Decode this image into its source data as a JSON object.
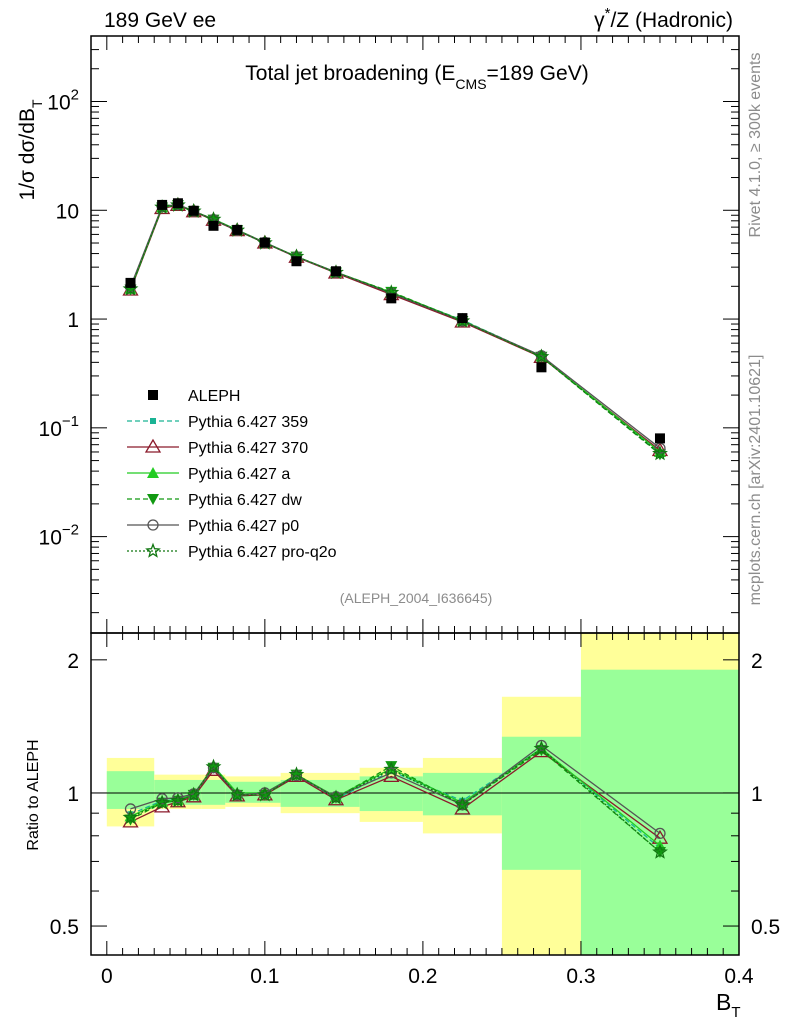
{
  "header": {
    "left": "189 GeV ee",
    "right_prefix": "γ",
    "right_sup": "*",
    "right_rest": "/Z (Hadronic)"
  },
  "side_labels": {
    "top": "Rivet 4.1.0, ≥ 300k events",
    "bottom": "mcplots.cern.ch [arXiv:2401.10621]"
  },
  "analysis_id": "(ALEPH_2004_I636645)",
  "colors": {
    "data": "#000000",
    "p359": "#1ab394",
    "p370": "#8b1a2b",
    "pa": "#22cc22",
    "pdw": "#119911",
    "pp0": "#555555",
    "pq2o": "#117711",
    "band_inner": "#99ff99",
    "band_outer": "#ffff99"
  },
  "chart_data": [
    {
      "type": "line",
      "title_main": "Total jet broadening (E",
      "title_sub": "CMS",
      "title_end": "=189 GeV)",
      "ylabel_main": "1/σ  dσ/dB",
      "ylabel_sub": "T",
      "yscale": "log",
      "ylim": [
        0.0013,
        400
      ],
      "xlim": [
        -0.01,
        0.4
      ],
      "yticks": [
        {
          "v": 100,
          "m": "10",
          "e": "2"
        },
        {
          "v": 10,
          "m": "10",
          "e": ""
        },
        {
          "v": 1,
          "m": "1",
          "e": ""
        },
        {
          "v": 0.1,
          "m": "10",
          "e": "−1"
        },
        {
          "v": 0.01,
          "m": "10",
          "e": "−2"
        }
      ],
      "x": [
        0.015,
        0.035,
        0.045,
        0.055,
        0.0675,
        0.0825,
        0.1,
        0.12,
        0.145,
        0.18,
        0.225,
        0.275,
        0.35
      ],
      "bin_edges": [
        0,
        0.03,
        0.04,
        0.05,
        0.06,
        0.075,
        0.09,
        0.11,
        0.13,
        0.16,
        0.2,
        0.25,
        0.3,
        0.4
      ],
      "data": {
        "name": "ALEPH",
        "values": [
          2.15,
          11.2,
          11.6,
          9.9,
          7.2,
          6.6,
          5.05,
          3.4,
          2.75,
          1.55,
          1.02,
          0.36,
          0.08
        ]
      },
      "series": [
        {
          "name": "Pythia 6.427 359",
          "key": "p359",
          "marker": "square-small",
          "dash": "5,3",
          "values": [
            1.93,
            10.75,
            11.2,
            9.75,
            8.2,
            6.5,
            5.0,
            3.75,
            2.67,
            1.74,
            0.98,
            0.455,
            0.058
          ]
        },
        {
          "name": "Pythia 6.427 370",
          "key": "p370",
          "marker": "triangle-open",
          "dash": "",
          "values": [
            1.85,
            10.4,
            11.1,
            9.7,
            8.1,
            6.5,
            5.0,
            3.7,
            2.65,
            1.68,
            0.94,
            0.445,
            0.062
          ]
        },
        {
          "name": "Pythia 6.427 a",
          "key": "pa",
          "marker": "triangle-filled",
          "dash": "",
          "values": [
            1.9,
            10.7,
            11.2,
            9.8,
            8.3,
            6.6,
            5.05,
            3.75,
            2.7,
            1.76,
            0.97,
            0.455,
            0.06
          ]
        },
        {
          "name": "Pythia 6.427 dw",
          "key": "pdw",
          "marker": "triangle-down",
          "dash": "5,3",
          "values": [
            1.87,
            10.6,
            11.15,
            9.8,
            8.2,
            6.55,
            5.0,
            3.75,
            2.68,
            1.78,
            0.96,
            0.45,
            0.057
          ]
        },
        {
          "name": "Pythia 6.427 p0",
          "key": "pp0",
          "marker": "circle-open",
          "dash": "",
          "values": [
            1.98,
            10.85,
            11.3,
            9.85,
            8.2,
            6.55,
            5.05,
            3.73,
            2.7,
            1.72,
            0.96,
            0.46,
            0.065
          ]
        },
        {
          "name": "Pythia 6.427 pro-q2o",
          "key": "pq2o",
          "marker": "star-open",
          "dash": "2,2",
          "values": [
            1.89,
            10.65,
            11.15,
            9.8,
            8.25,
            6.55,
            5.0,
            3.75,
            2.68,
            1.75,
            0.96,
            0.45,
            0.058
          ]
        }
      ]
    },
    {
      "type": "line",
      "ylabel": "Ratio to ALEPH",
      "xlabel_main": "B",
      "xlabel_sub": "T",
      "yscale": "log",
      "ylim": [
        0.43,
        2.3
      ],
      "xlim": [
        -0.01,
        0.4
      ],
      "yticks": [
        {
          "v": 0.5,
          "label": "0.5"
        },
        {
          "v": 1,
          "label": "1"
        },
        {
          "v": 2,
          "label": "2"
        }
      ],
      "xticks": [
        {
          "v": 0,
          "label": "0"
        },
        {
          "v": 0.1,
          "label": "0.1"
        },
        {
          "v": 0.2,
          "label": "0.2"
        },
        {
          "v": 0.3,
          "label": "0.3"
        },
        {
          "v": 0.4,
          "label": "0.4"
        }
      ],
      "bands": [
        {
          "lo": 0.0,
          "hi": 0.03,
          "in_lo": 0.92,
          "in_hi": 1.12,
          "out_lo": 0.84,
          "out_hi": 1.2
        },
        {
          "lo": 0.03,
          "hi": 0.06,
          "in_lo": 0.94,
          "in_hi": 1.07,
          "out_lo": 0.92,
          "out_hi": 1.1
        },
        {
          "lo": 0.06,
          "hi": 0.075,
          "in_lo": 0.94,
          "in_hi": 1.07,
          "out_lo": 0.92,
          "out_hi": 1.1
        },
        {
          "lo": 0.075,
          "hi": 0.11,
          "in_lo": 0.95,
          "in_hi": 1.06,
          "out_lo": 0.93,
          "out_hi": 1.09
        },
        {
          "lo": 0.11,
          "hi": 0.16,
          "in_lo": 0.93,
          "in_hi": 1.07,
          "out_lo": 0.9,
          "out_hi": 1.11
        },
        {
          "lo": 0.16,
          "hi": 0.2,
          "in_lo": 0.91,
          "in_hi": 1.09,
          "out_lo": 0.86,
          "out_hi": 1.14
        },
        {
          "lo": 0.2,
          "hi": 0.25,
          "in_lo": 0.89,
          "in_hi": 1.11,
          "out_lo": 0.81,
          "out_hi": 1.2
        },
        {
          "lo": 0.25,
          "hi": 0.3,
          "in_lo": 0.67,
          "in_hi": 1.34,
          "out_lo": 0.43,
          "out_hi": 1.65
        },
        {
          "lo": 0.3,
          "hi": 0.4,
          "in_lo": 0.43,
          "in_hi": 1.9,
          "out_lo": 0.43,
          "out_hi": 2.3
        }
      ],
      "series": [
        {
          "key": "p359",
          "values": [
            0.895,
            0.96,
            0.965,
            0.985,
            1.14,
            0.985,
            0.99,
            1.1,
            0.97,
            1.12,
            0.96,
            1.26,
            0.75
          ]
        },
        {
          "key": "p370",
          "values": [
            0.86,
            0.93,
            0.955,
            0.98,
            1.125,
            0.985,
            0.99,
            1.09,
            0.965,
            1.09,
            0.92,
            1.24,
            0.79
          ]
        },
        {
          "key": "pa",
          "values": [
            0.885,
            0.955,
            0.965,
            0.99,
            1.15,
            1.0,
            1.0,
            1.1,
            0.98,
            1.135,
            0.95,
            1.26,
            0.76
          ]
        },
        {
          "key": "pdw",
          "values": [
            0.87,
            0.95,
            0.96,
            0.99,
            1.14,
            0.99,
            0.99,
            1.1,
            0.975,
            1.15,
            0.94,
            1.25,
            0.735
          ]
        },
        {
          "key": "pp0",
          "values": [
            0.92,
            0.97,
            0.975,
            0.995,
            1.14,
            0.99,
            1.0,
            1.095,
            0.98,
            1.11,
            0.94,
            1.28,
            0.81
          ]
        },
        {
          "key": "pq2o",
          "values": [
            0.88,
            0.95,
            0.96,
            0.99,
            1.145,
            0.99,
            0.99,
            1.1,
            0.975,
            1.13,
            0.94,
            1.26,
            0.735
          ]
        }
      ]
    }
  ]
}
